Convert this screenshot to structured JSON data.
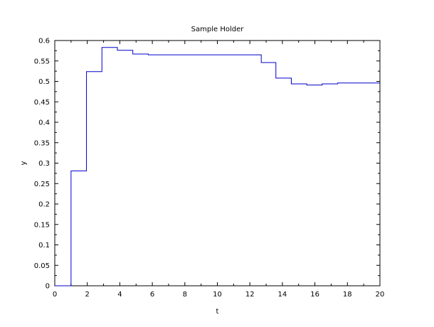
{
  "chart_data": {
    "type": "line",
    "step": true,
    "title": "Sample Holder",
    "xlabel": "t",
    "ylabel": "y",
    "xlim": [
      0,
      20
    ],
    "ylim": [
      0,
      0.6
    ],
    "xticks": [
      0,
      2,
      4,
      6,
      8,
      10,
      12,
      14,
      16,
      18,
      20
    ],
    "yticks": [
      0,
      0.05,
      0.1,
      0.15,
      0.2,
      0.25,
      0.3,
      0.35,
      0.4,
      0.45,
      0.5,
      0.55,
      0.6
    ],
    "grid": false,
    "line_color": "#0000cc",
    "series": [
      {
        "name": "y",
        "x": [
          0,
          1,
          1,
          1.95,
          1.95,
          2.9,
          2.9,
          3.85,
          3.85,
          4.8,
          4.8,
          5.75,
          5.75,
          12.7,
          12.7,
          13.6,
          13.6,
          14.55,
          14.55,
          15.5,
          15.5,
          16.45,
          16.45,
          17.4,
          17.4,
          20
        ],
        "y": [
          0,
          0,
          0.281,
          0.281,
          0.524,
          0.524,
          0.583,
          0.583,
          0.576,
          0.576,
          0.567,
          0.567,
          0.565,
          0.565,
          0.546,
          0.546,
          0.508,
          0.508,
          0.494,
          0.494,
          0.491,
          0.491,
          0.494,
          0.494,
          0.496,
          0.496
        ]
      }
    ]
  }
}
